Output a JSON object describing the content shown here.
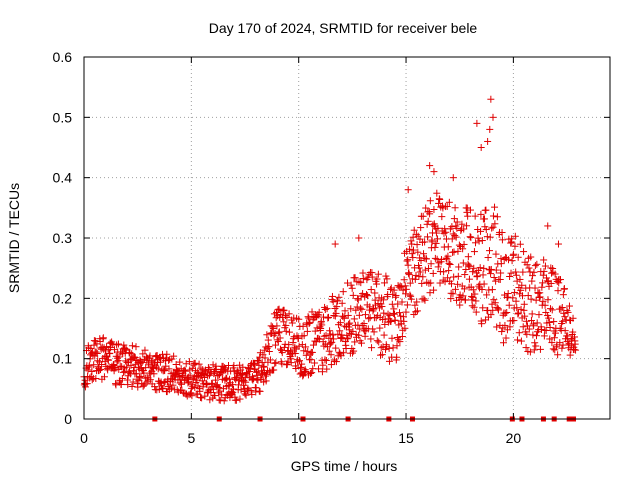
{
  "chart_data": {
    "type": "scatter",
    "title": "Day 170 of 2024, SRMTID for receiver bele",
    "xlabel": "GPS time / hours",
    "ylabel": "SRMTID / TECUs",
    "xlim": [
      0,
      24.5
    ],
    "ylim": [
      0,
      0.6
    ],
    "x_ticks": [
      0,
      5,
      10,
      15,
      20
    ],
    "x_tick_labels": [
      "0",
      "5",
      "10",
      "15",
      "20"
    ],
    "y_ticks": [
      0,
      0.1,
      0.2,
      0.3,
      0.4,
      0.5,
      0.6
    ],
    "y_tick_labels": [
      "0",
      "0.1",
      "0.2",
      "0.3",
      "0.4",
      "0.5",
      "0.6"
    ],
    "grid": true,
    "marker": "plus",
    "color": "#e00000",
    "series": [
      {
        "name": "SRMTID",
        "trend": {
          "x": [
            0,
            0.5,
            1,
            1.5,
            2,
            3,
            4,
            5,
            6,
            7,
            8,
            8.5,
            9,
            9.5,
            10,
            11,
            12,
            13,
            14,
            14.5,
            15,
            15.5,
            16,
            16.5,
            17,
            17.5,
            18,
            18.5,
            19,
            19.5,
            20,
            20.5,
            21,
            21.5,
            22,
            22.5,
            22.9
          ],
          "y": [
            0.08,
            0.1,
            0.1,
            0.09,
            0.09,
            0.08,
            0.075,
            0.065,
            0.06,
            0.06,
            0.065,
            0.1,
            0.14,
            0.13,
            0.12,
            0.13,
            0.16,
            0.18,
            0.17,
            0.16,
            0.22,
            0.25,
            0.28,
            0.3,
            0.28,
            0.27,
            0.26,
            0.25,
            0.27,
            0.22,
            0.23,
            0.2,
            0.18,
            0.2,
            0.17,
            0.16,
            0.15
          ]
        },
        "spread": {
          "x": [
            0,
            2,
            5,
            8,
            9,
            10,
            12,
            14,
            15,
            16,
            17,
            18,
            19,
            20,
            21,
            22,
            22.9
          ],
          "y": [
            0.035,
            0.035,
            0.03,
            0.03,
            0.05,
            0.05,
            0.06,
            0.07,
            0.07,
            0.08,
            0.08,
            0.09,
            0.1,
            0.09,
            0.08,
            0.07,
            0.05
          ]
        },
        "x_start": 0,
        "x_end": 22.9,
        "x_step": 0.0167,
        "highlights": [
          {
            "x": 18.3,
            "y": 0.49
          },
          {
            "x": 18.5,
            "y": 0.45
          },
          {
            "x": 18.8,
            "y": 0.46
          },
          {
            "x": 18.9,
            "y": 0.48
          },
          {
            "x": 18.95,
            "y": 0.53
          },
          {
            "x": 19.05,
            "y": 0.5
          },
          {
            "x": 16.1,
            "y": 0.42
          },
          {
            "x": 16.3,
            "y": 0.41
          },
          {
            "x": 17.2,
            "y": 0.4
          },
          {
            "x": 15.1,
            "y": 0.38
          },
          {
            "x": 12.8,
            "y": 0.3
          },
          {
            "x": 11.7,
            "y": 0.29
          },
          {
            "x": 21.6,
            "y": 0.32
          },
          {
            "x": 22.1,
            "y": 0.29
          }
        ]
      }
    ],
    "zero_points_x": [
      3.3,
      6.3,
      8.2,
      10.2,
      12.3,
      14.2,
      15.3,
      19.95,
      20.4,
      21.4,
      21.9,
      22.6,
      22.7,
      22.8
    ]
  }
}
